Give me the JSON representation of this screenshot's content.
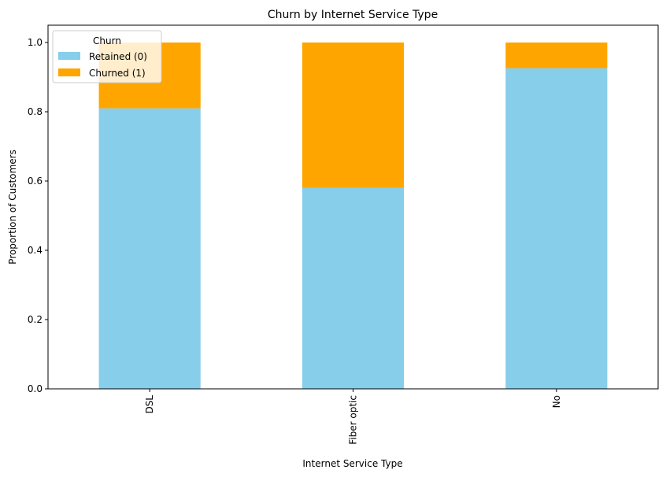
{
  "chart_data": {
    "type": "bar",
    "stacked": true,
    "title": "Churn by Internet Service Type",
    "xlabel": "Internet Service Type",
    "ylabel": "Proportion of Customers",
    "categories": [
      "DSL",
      "Fiber optic",
      "No"
    ],
    "series": [
      {
        "name": "Retained (0)",
        "color": "#87CEEB",
        "values": [
          0.81,
          0.58,
          0.926
        ]
      },
      {
        "name": "Churned (1)",
        "color": "#FFA500",
        "values": [
          0.19,
          0.42,
          0.074
        ]
      }
    ],
    "ylim": [
      0,
      1.05
    ],
    "yticks": [
      0.0,
      0.2,
      0.4,
      0.6,
      0.8,
      1.0
    ],
    "ytick_labels": [
      "0.0",
      "0.2",
      "0.4",
      "0.6",
      "0.8",
      "1.0"
    ],
    "x_tick_rotation": 90,
    "grid": false,
    "legend": {
      "title": "Churn",
      "placement": "upper-left"
    }
  }
}
